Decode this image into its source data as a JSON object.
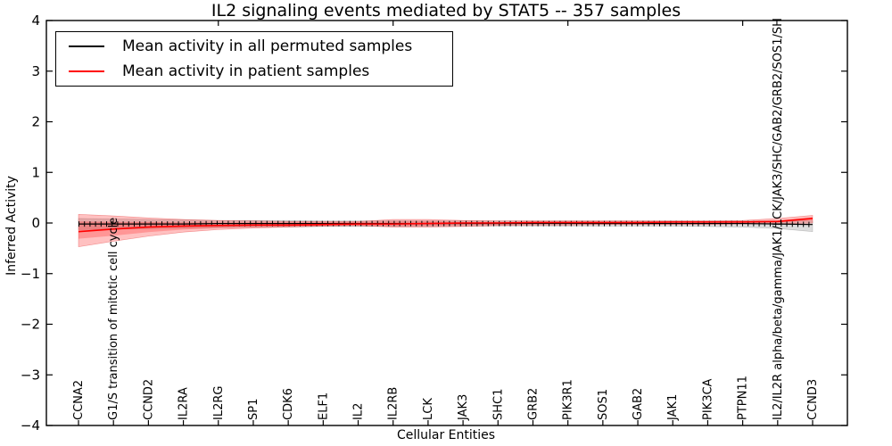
{
  "title": "IL2 signaling events mediated by STAT5 -- 357 samples",
  "axes": {
    "ylabel": "Inferred Activity",
    "xlabel": "Cellular Entities",
    "y_tick_labels": [
      "4",
      "3",
      "2",
      "1",
      "0",
      "−1",
      "−2",
      "−3",
      "−4"
    ],
    "y_tick_values": [
      4,
      3,
      2,
      1,
      0,
      -1,
      -2,
      -3,
      -4
    ]
  },
  "legend": {
    "items": [
      {
        "label": "Mean activity in all permuted samples",
        "color": "#000000"
      },
      {
        "label": "Mean activity in patient samples",
        "color": "#ff0000"
      }
    ]
  },
  "colors": {
    "permuted_line": "#000000",
    "patient_line": "#ff0000",
    "permuted_band": "rgba(130,130,130,0.28)",
    "patient_band": "rgba(255,50,50,0.30)",
    "patient_band_inner": "rgba(255,0,0,0.22)",
    "axis": "#000000"
  },
  "chart_data": {
    "type": "line",
    "title": "IL2 signaling events mediated by STAT5 -- 357 samples",
    "xlabel": "Cellular Entities",
    "ylabel": "Inferred Activity",
    "ylim": [
      -4,
      4
    ],
    "grid": false,
    "legend_position": "upper left",
    "top_tick_indices": [
      4,
      9,
      14,
      19
    ],
    "categories": [
      "CCNA2",
      "G1/S transition of mitotic cell cycle",
      "CCND2",
      "IL2RA",
      "IL2RG",
      "SP1",
      "CDK6",
      "ELF1",
      "IL2",
      "IL2RB",
      "LCK",
      "JAK3",
      "SHC1",
      "GRB2",
      "PIK3R1",
      "SOS1",
      "GAB2",
      "JAK1",
      "PIK3CA",
      "PTPN11",
      "IL2/IL2R alpha/beta/gamma/JAK1/LCK/JAK3/SHC/GAB2/GRB2/SOS1/SH",
      "CCND3"
    ],
    "series": [
      {
        "name": "Mean activity in all permuted samples",
        "marker_ticks": true,
        "values": [
          -0.02,
          -0.02,
          -0.02,
          -0.02,
          -0.01,
          -0.01,
          -0.01,
          -0.01,
          -0.01,
          -0.01,
          -0.01,
          -0.01,
          -0.01,
          -0.01,
          -0.01,
          -0.01,
          -0.01,
          -0.01,
          -0.01,
          -0.01,
          -0.02,
          -0.03
        ],
        "band_upper": [
          0.09,
          0.08,
          0.07,
          0.06,
          0.05,
          0.05,
          0.05,
          0.04,
          0.04,
          0.04,
          0.04,
          0.04,
          0.04,
          0.04,
          0.04,
          0.04,
          0.04,
          0.04,
          0.04,
          0.04,
          0.04,
          0.04
        ],
        "band_lower": [
          -0.13,
          -0.12,
          -0.11,
          -0.1,
          -0.09,
          -0.08,
          -0.08,
          -0.07,
          -0.07,
          -0.07,
          -0.07,
          -0.06,
          -0.06,
          -0.06,
          -0.06,
          -0.06,
          -0.06,
          -0.06,
          -0.07,
          -0.08,
          -0.11,
          -0.17
        ]
      },
      {
        "name": "Mean activity in patient samples",
        "marker_ticks": false,
        "values": [
          -0.17,
          -0.12,
          -0.08,
          -0.06,
          -0.05,
          -0.04,
          -0.04,
          -0.03,
          -0.02,
          -0.02,
          -0.01,
          0.0,
          0.0,
          0.01,
          0.01,
          0.01,
          0.01,
          0.02,
          0.02,
          0.02,
          0.03,
          0.09
        ],
        "band_upper": [
          0.17,
          0.14,
          0.1,
          0.07,
          0.05,
          0.04,
          0.03,
          0.03,
          0.03,
          0.07,
          0.07,
          0.05,
          0.04,
          0.04,
          0.04,
          0.04,
          0.04,
          0.04,
          0.04,
          0.05,
          0.09,
          0.15
        ],
        "band_lower": [
          -0.47,
          -0.36,
          -0.26,
          -0.18,
          -0.13,
          -0.1,
          -0.08,
          -0.06,
          -0.05,
          -0.08,
          -0.08,
          -0.07,
          -0.05,
          -0.04,
          -0.04,
          -0.03,
          -0.03,
          -0.03,
          -0.03,
          -0.02,
          -0.02,
          0.0
        ],
        "band_inner_upper": [
          0.03,
          0.02,
          0.02,
          0.01,
          0.01,
          0.01,
          0.01,
          0.01,
          0.02,
          0.03,
          0.03,
          0.02,
          0.02,
          0.02,
          0.02,
          0.02,
          0.02,
          0.03,
          0.03,
          0.03,
          0.05,
          0.12
        ],
        "band_inner_lower": [
          -0.31,
          -0.25,
          -0.18,
          -0.13,
          -0.1,
          -0.08,
          -0.07,
          -0.06,
          -0.06,
          -0.06,
          -0.05,
          -0.04,
          -0.03,
          -0.02,
          -0.01,
          -0.01,
          -0.01,
          0.0,
          0.0,
          0.0,
          0.01,
          0.05
        ]
      }
    ]
  }
}
